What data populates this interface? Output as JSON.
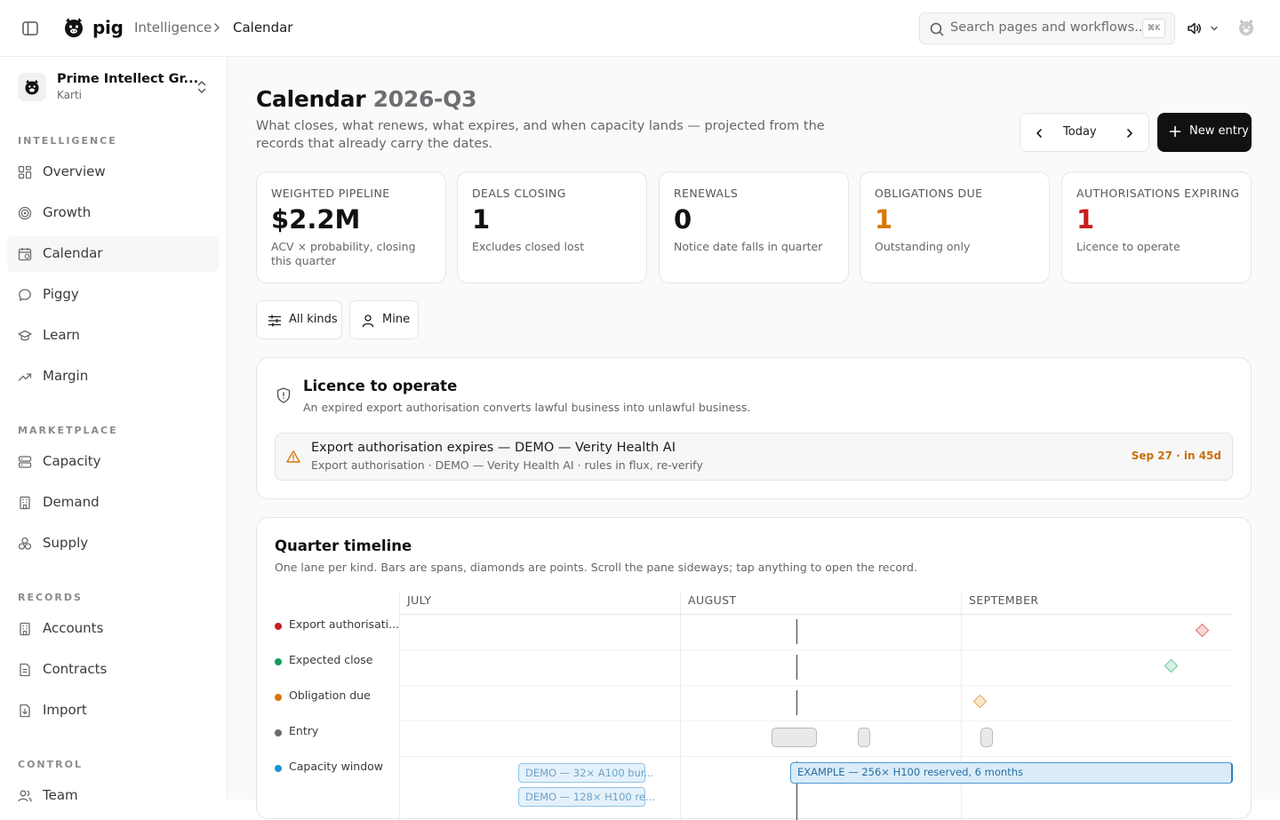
{
  "topbar": {
    "brand": "pig",
    "breadcrumb": [
      "Intelligence",
      "Calendar"
    ],
    "search_placeholder": "Search pages and workflows...",
    "search_shortcut": "⌘K"
  },
  "sidebar": {
    "org_name": "Prime Intellect Gr...",
    "org_user": "Karti",
    "sections": [
      {
        "label": "INTELLIGENCE",
        "items": [
          {
            "label": "Overview",
            "icon": "grid-icon"
          },
          {
            "label": "Growth",
            "icon": "target-icon"
          },
          {
            "label": "Calendar",
            "icon": "calendar-icon",
            "active": true
          },
          {
            "label": "Piggy",
            "icon": "chat-icon"
          },
          {
            "label": "Learn",
            "icon": "graduation-cap-icon"
          },
          {
            "label": "Margin",
            "icon": "trending-up-icon"
          }
        ]
      },
      {
        "label": "MARKETPLACE",
        "items": [
          {
            "label": "Capacity",
            "icon": "server-icon"
          },
          {
            "label": "Demand",
            "icon": "building-icon"
          },
          {
            "label": "Supply",
            "icon": "boxes-icon"
          }
        ]
      },
      {
        "label": "RECORDS",
        "items": [
          {
            "label": "Accounts",
            "icon": "building-icon"
          },
          {
            "label": "Contracts",
            "icon": "document-icon"
          },
          {
            "label": "Import",
            "icon": "import-icon"
          }
        ]
      },
      {
        "label": "CONTROL",
        "items": [
          {
            "label": "Team",
            "icon": "users-icon"
          }
        ]
      }
    ]
  },
  "header": {
    "title": "Calendar",
    "period": "2026-Q3",
    "subtitle": "What closes, what renews, what expires, and when capacity lands — projected from the records that already carry the dates.",
    "today_label": "Today",
    "new_entry_label": "New entry"
  },
  "stats": [
    {
      "label": "WEIGHTED PIPELINE",
      "value": "$2.2M",
      "note": "ACV × probability, closing this quarter",
      "tone": "default"
    },
    {
      "label": "DEALS CLOSING",
      "value": "1",
      "note": "Excludes closed lost",
      "tone": "default"
    },
    {
      "label": "RENEWALS",
      "value": "0",
      "note": "Notice date falls in quarter",
      "tone": "default"
    },
    {
      "label": "OBLIGATIONS DUE",
      "value": "1",
      "note": "Outstanding only",
      "tone": "amber"
    },
    {
      "label": "AUTHORISATIONS EXPIRING",
      "value": "1",
      "note": "Licence to operate",
      "tone": "red"
    }
  ],
  "filters": {
    "kinds_label": "All kinds",
    "mine_label": "Mine"
  },
  "licence": {
    "title": "Licence to operate",
    "subtitle": "An expired export authorisation converts lawful business into unlawful business.",
    "alert": {
      "title": "Export authorisation expires — DEMO — Verity Health AI",
      "subtitle": "Export authorisation · DEMO — Verity Health AI · rules in flux, re-verify",
      "date": "Sep 27 · in 45d"
    }
  },
  "timeline": {
    "title": "Quarter timeline",
    "subtitle": "One lane per kind. Bars are spans, diamonds are points. Scroll the pane sideways; tap anything to open the record.",
    "months": [
      "JULY",
      "AUGUST",
      "SEPTEMBER"
    ],
    "lanes": [
      {
        "label": "Export authorisati...",
        "color": "#c81e1e"
      },
      {
        "label": "Expected close",
        "color": "#0f9d58"
      },
      {
        "label": "Obligation due",
        "color": "#d97706"
      },
      {
        "label": "Entry",
        "color": "#6b6b70"
      },
      {
        "label": "Capacity window",
        "color": "#1d8fd6"
      }
    ],
    "capacity_bars": [
      "DEMO — 32× A100 bur...",
      "DEMO — 128× H100 re...",
      "EXAMPLE — 256× H100 reserved, 6 months"
    ]
  }
}
